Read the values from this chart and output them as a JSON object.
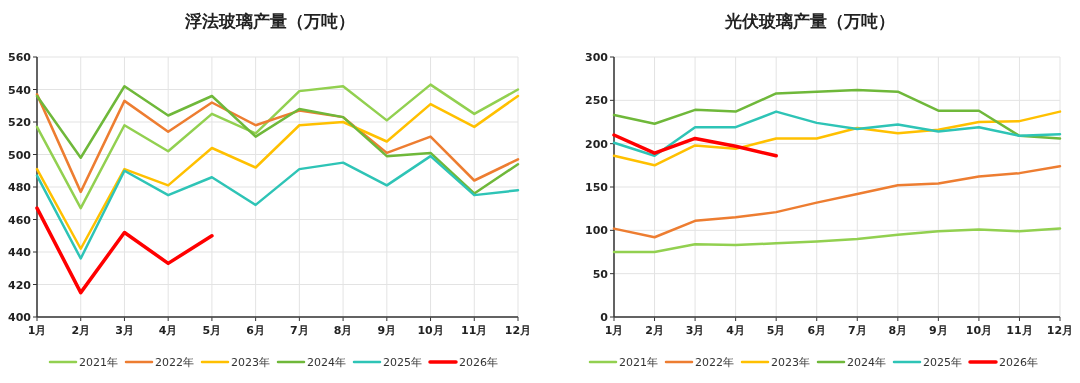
{
  "chart_data": [
    {
      "type": "line",
      "title": "浮法玻璃产量（万吨）",
      "categories": [
        "1月",
        "2月",
        "3月",
        "4月",
        "5月",
        "6月",
        "7月",
        "8月",
        "9月",
        "10月",
        "11月",
        "12月"
      ],
      "ylim": [
        400,
        560
      ],
      "yticks": [
        400,
        420,
        440,
        460,
        480,
        500,
        520,
        540,
        560
      ],
      "grid": true,
      "legend": "bottom",
      "series": [
        {
          "name": "2021年",
          "color": "#92d050",
          "values": [
            517,
            467,
            518,
            502,
            525,
            513,
            539,
            542,
            521,
            543,
            525,
            540
          ]
        },
        {
          "name": "2022年",
          "color": "#ed7d31",
          "values": [
            537,
            477,
            533,
            514,
            532,
            518,
            527,
            523,
            501,
            511,
            484,
            497
          ]
        },
        {
          "name": "2023年",
          "color": "#ffc000",
          "values": [
            491,
            442,
            491,
            481,
            504,
            492,
            518,
            520,
            508,
            531,
            517,
            536
          ]
        },
        {
          "name": "2024年",
          "color": "#6fb83a",
          "values": [
            536,
            498,
            542,
            524,
            536,
            511,
            528,
            523,
            499,
            501,
            476,
            494
          ]
        },
        {
          "name": "2025年",
          "color": "#2ec4b6",
          "values": [
            487,
            436,
            490,
            475,
            486,
            469,
            491,
            495,
            481,
            499,
            475,
            478
          ]
        },
        {
          "name": "2026年",
          "color": "#ff0000",
          "values": [
            467,
            415,
            452,
            433,
            450,
            null,
            null,
            null,
            null,
            null,
            null,
            null
          ]
        }
      ]
    },
    {
      "type": "line",
      "title": "光伏玻璃产量（万吨）",
      "categories": [
        "1月",
        "2月",
        "3月",
        "4月",
        "5月",
        "6月",
        "7月",
        "8月",
        "9月",
        "10月",
        "11月",
        "12月"
      ],
      "ylim": [
        0,
        300
      ],
      "yticks": [
        0,
        50,
        100,
        150,
        200,
        250,
        300
      ],
      "grid": true,
      "legend": "bottom",
      "series": [
        {
          "name": "2021年",
          "color": "#92d050",
          "values": [
            75,
            75,
            84,
            83,
            85,
            87,
            90,
            95,
            99,
            101,
            99,
            102
          ]
        },
        {
          "name": "2022年",
          "color": "#ed7d31",
          "values": [
            102,
            92,
            111,
            115,
            121,
            132,
            142,
            152,
            154,
            162,
            166,
            174
          ]
        },
        {
          "name": "2023年",
          "color": "#ffc000",
          "values": [
            186,
            175,
            198,
            194,
            206,
            206,
            218,
            212,
            216,
            225,
            226,
            237
          ]
        },
        {
          "name": "2024年",
          "color": "#6fb83a",
          "values": [
            233,
            223,
            239,
            237,
            258,
            260,
            262,
            260,
            238,
            238,
            209,
            206
          ]
        },
        {
          "name": "2025年",
          "color": "#2ec4b6",
          "values": [
            201,
            186,
            219,
            219,
            237,
            224,
            217,
            222,
            214,
            219,
            209,
            211
          ]
        },
        {
          "name": "2026年",
          "color": "#ff0000",
          "values": [
            210,
            189,
            206,
            197,
            186,
            null,
            null,
            null,
            null,
            null,
            null,
            null
          ]
        }
      ]
    }
  ]
}
